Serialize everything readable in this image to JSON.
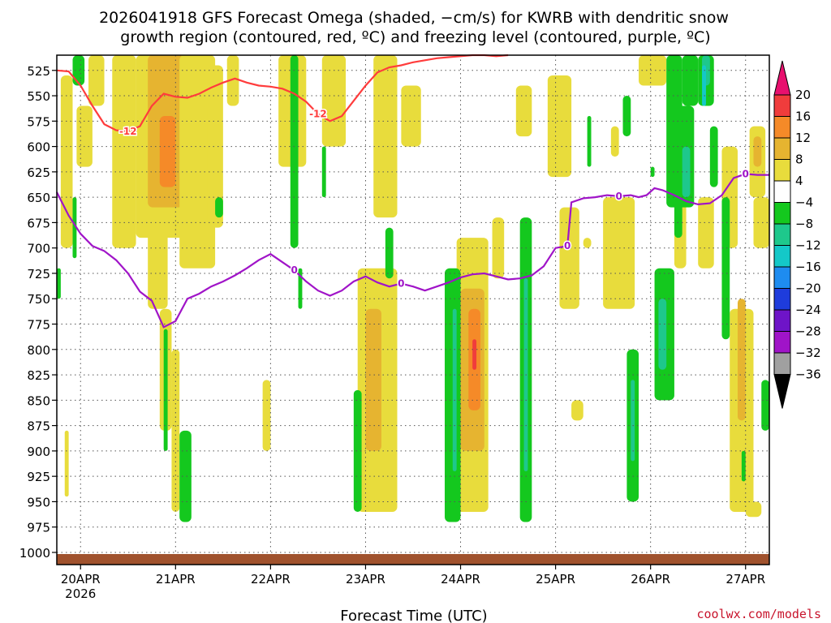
{
  "chart_data": {
    "type": "heatmap",
    "title_lines": [
      "2026041918 GFS Forecast Omega (shaded, −cm/s) for KWRB with dendritic snow",
      "growth region (contoured, red, ºC) and freezing level (contoured, purple, ºC)"
    ],
    "xlabel": "Forecast Time (UTC)",
    "credit": "coolwx.com/models",
    "x_ticks": [
      {
        "label": "20APR",
        "sub": "2026",
        "t": 0
      },
      {
        "label": "21APR",
        "sub": "",
        "t": 24
      },
      {
        "label": "22APR",
        "sub": "",
        "t": 48
      },
      {
        "label": "23APR",
        "sub": "",
        "t": 72
      },
      {
        "label": "24APR",
        "sub": "",
        "t": 96
      },
      {
        "label": "25APR",
        "sub": "",
        "t": 120
      },
      {
        "label": "26APR",
        "sub": "",
        "t": 144
      },
      {
        "label": "27APR",
        "sub": "",
        "t": 168
      }
    ],
    "xlim_hours": [
      -6,
      174
    ],
    "y_levels_hpa": [
      525,
      550,
      575,
      600,
      625,
      650,
      675,
      700,
      725,
      750,
      775,
      800,
      825,
      850,
      875,
      900,
      925,
      950,
      975,
      1000
    ],
    "ylim_hpa": [
      510,
      1012
    ],
    "colorbar": {
      "labels": [
        "20",
        "16",
        "12",
        "8",
        "4",
        "−4",
        "−8",
        "−12",
        "−16",
        "−20",
        "−24",
        "−28",
        "−32",
        "−36"
      ],
      "colors": [
        "#e8106e",
        "#f03c3c",
        "#f58a28",
        "#e6b430",
        "#e8dc3c",
        "#ffffff",
        "#14c81e",
        "#1ec88c",
        "#14c8c8",
        "#1e8cf0",
        "#1e3cdc",
        "#6e14c8",
        "#a014c8",
        "#a0a0a0",
        "#000000"
      ]
    },
    "snow_growth_contour": {
      "label": "-12",
      "color": "#ff3c3c",
      "points": [
        [
          -6,
          525
        ],
        [
          -3,
          526
        ],
        [
          0,
          540
        ],
        [
          3,
          560
        ],
        [
          6,
          578
        ],
        [
          9,
          584
        ],
        [
          12,
          585
        ],
        [
          15,
          580
        ],
        [
          18,
          560
        ],
        [
          21,
          548
        ],
        [
          24,
          551
        ],
        [
          27,
          552
        ],
        [
          30,
          548
        ],
        [
          33,
          542
        ],
        [
          36,
          537
        ],
        [
          39,
          533
        ],
        [
          42,
          537
        ],
        [
          45,
          540
        ],
        [
          48,
          541
        ],
        [
          51,
          543
        ],
        [
          54,
          548
        ],
        [
          57,
          556
        ],
        [
          60,
          568
        ],
        [
          63,
          575
        ],
        [
          66,
          570
        ],
        [
          69,
          555
        ],
        [
          72,
          540
        ],
        [
          75,
          527
        ],
        [
          78,
          522
        ],
        [
          81,
          520
        ],
        [
          84,
          517
        ],
        [
          87,
          515
        ],
        [
          90,
          513
        ],
        [
          93,
          512
        ],
        [
          96,
          511
        ],
        [
          99,
          510
        ],
        [
          102,
          510
        ],
        [
          105,
          511
        ],
        [
          108,
          510
        ]
      ]
    },
    "freezing_level_contour": {
      "label": "0",
      "color": "#a014c8",
      "points": [
        [
          -6,
          645
        ],
        [
          -3,
          668
        ],
        [
          0,
          686
        ],
        [
          3,
          698
        ],
        [
          6,
          703
        ],
        [
          9,
          712
        ],
        [
          12,
          725
        ],
        [
          15,
          743
        ],
        [
          18,
          752
        ],
        [
          21,
          778
        ],
        [
          24,
          772
        ],
        [
          27,
          750
        ],
        [
          30,
          745
        ],
        [
          33,
          738
        ],
        [
          36,
          733
        ],
        [
          39,
          727
        ],
        [
          42,
          720
        ],
        [
          45,
          712
        ],
        [
          48,
          706
        ],
        [
          51,
          714
        ],
        [
          54,
          722
        ],
        [
          57,
          733
        ],
        [
          60,
          742
        ],
        [
          63,
          747
        ],
        [
          66,
          742
        ],
        [
          69,
          733
        ],
        [
          72,
          728
        ],
        [
          75,
          734
        ],
        [
          78,
          738
        ],
        [
          81,
          735
        ],
        [
          84,
          738
        ],
        [
          87,
          742
        ],
        [
          90,
          738
        ],
        [
          93,
          734
        ],
        [
          96,
          729
        ],
        [
          99,
          726
        ],
        [
          102,
          725
        ],
        [
          105,
          728
        ],
        [
          108,
          731
        ],
        [
          111,
          730
        ],
        [
          114,
          727
        ],
        [
          117,
          718
        ],
        [
          120,
          700
        ],
        [
          123,
          698
        ],
        [
          124,
          655
        ],
        [
          127,
          651
        ],
        [
          130,
          650
        ],
        [
          133,
          648
        ],
        [
          136,
          649
        ],
        [
          139,
          648
        ],
        [
          141,
          650
        ],
        [
          143,
          648
        ],
        [
          145,
          641
        ],
        [
          147,
          643
        ],
        [
          150,
          648
        ],
        [
          153,
          654
        ],
        [
          156,
          657
        ],
        [
          159,
          656
        ],
        [
          162,
          648
        ],
        [
          165,
          631
        ],
        [
          168,
          627
        ],
        [
          171,
          628
        ],
        [
          174,
          628
        ]
      ]
    },
    "omega_shading_note": "Positive (upward) omega shaded yellow/orange/red; negative (downward) shaded green/teal/cyan; shading regions approximated."
  }
}
